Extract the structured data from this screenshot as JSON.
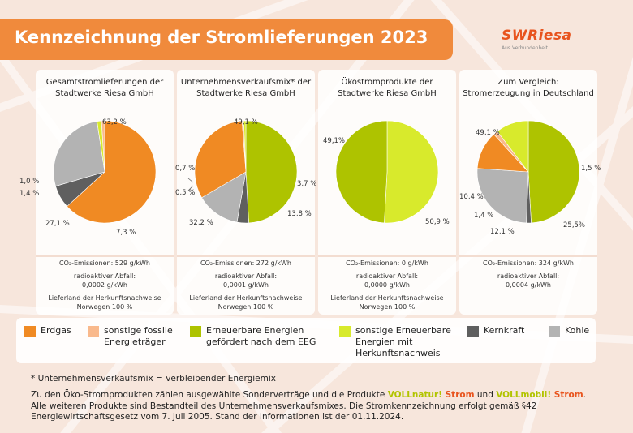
{
  "header": {
    "title": "Kennzeichnung der Stromlieferungen 2023"
  },
  "logo": {
    "wordmark": "SWRiesa",
    "tagline": "Aus Verbundenheit"
  },
  "colors": {
    "erdgas": "#f08a23",
    "sonstige_fossile": "#f9b98c",
    "erneuerbar_eeg": "#aec300",
    "sonstige_erneuerbar": "#d8ea2c",
    "kernkraft": "#5f5f5f",
    "kohle": "#b3b3b3"
  },
  "chart_data": [
    {
      "type": "pie",
      "title": "Gesamtstromlieferungen der Stadtwerke Riesa GmbH",
      "title_lines": [
        "Gesamtstromlieferungen der",
        "Stadtwerke Riesa GmbH"
      ],
      "slices": [
        {
          "category": "Erdgas",
          "value": 63.2,
          "label": "63,2 %",
          "color": "#f08a23"
        },
        {
          "category": "Kernkraft",
          "value": 7.3,
          "label": "7,3 %",
          "color": "#5f5f5f"
        },
        {
          "category": "Kohle",
          "value": 27.1,
          "label": "27,1 %",
          "color": "#b3b3b3"
        },
        {
          "category": "sonstige Erneuerbare Energien mit Herkunftsnachweis",
          "value": 1.4,
          "label": "1,4 %",
          "color": "#d8ea2c"
        },
        {
          "category": "sonstige fossile Energieträger",
          "value": 1.0,
          "label": "1,0 %",
          "color": "#f9b98c"
        }
      ],
      "info": {
        "co2": "CO₂-Emissionen: 529 g/kWh",
        "waste_label": "radioaktiver Abfall:",
        "waste_value": "0,0002 g/kWh",
        "origin_label": "Lieferland der Herkunftsnachweise",
        "origin_value": "Norwegen 100 %"
      }
    },
    {
      "type": "pie",
      "title": "Unternehmensverkaufsmix* der Stadtwerke Riesa GmbH",
      "title_lines": [
        "Unternehmensverkaufsmix* der",
        "Stadtwerke Riesa GmbH"
      ],
      "slices": [
        {
          "category": "Erneuerbare Energien gefördert nach dem EEG",
          "value": 49.1,
          "label": "49,1 %",
          "color": "#aec300"
        },
        {
          "category": "Kernkraft",
          "value": 3.7,
          "label": "3,7 %",
          "color": "#5f5f5f"
        },
        {
          "category": "Kohle",
          "value": 13.8,
          "label": "13,8 %",
          "color": "#b3b3b3"
        },
        {
          "category": "Erdgas",
          "value": 32.2,
          "label": "32,2 %",
          "color": "#f08a23"
        },
        {
          "category": "sonstige fossile Energieträger",
          "value": 0.5,
          "label": "0,5 %",
          "color": "#f9b98c"
        },
        {
          "category": "sonstige Erneuerbare Energien mit Herkunftsnachweis",
          "value": 0.7,
          "label": "0,7 %",
          "color": "#d8ea2c"
        }
      ],
      "info": {
        "co2": "CO₂-Emissionen: 272 g/kWh",
        "waste_label": "radioaktiver Abfall:",
        "waste_value": "0,0001 g/kWh",
        "origin_label": "Lieferland der Herkunftsnachweise",
        "origin_value": "Norwegen 100 %"
      }
    },
    {
      "type": "pie",
      "title": "Ökostromprodukte der Stadtwerke Riesa GmbH",
      "title_lines": [
        "Ökostromprodukte der",
        "Stadtwerke Riesa GmbH"
      ],
      "slices": [
        {
          "category": "sonstige Erneuerbare Energien mit Herkunftsnachweis",
          "value": 50.9,
          "label": "50,9 %",
          "color": "#d8ea2c"
        },
        {
          "category": "Erneuerbare Energien gefördert nach dem EEG",
          "value": 49.1,
          "label": "49,1%",
          "color": "#aec300"
        }
      ],
      "info": {
        "co2": "CO₂-Emissionen: 0 g/kWh",
        "waste_label": "radioaktiver Abfall:",
        "waste_value": "0,0000 g/kWh",
        "origin_label": "Lieferland der Herkunftsnachweise",
        "origin_value": "Norwegen 100 %"
      }
    },
    {
      "type": "pie",
      "title": "Zum Vergleich: Stromerzeugung in Deutschland",
      "title_lines": [
        "Zum Vergleich:",
        "Stromerzeugung in Deutschland"
      ],
      "slices": [
        {
          "category": "Erneuerbare Energien gefördert nach dem EEG",
          "value": 49.1,
          "label": "49,1 %",
          "color": "#aec300"
        },
        {
          "category": "Kernkraft",
          "value": 1.5,
          "label": "1,5 %",
          "color": "#5f5f5f"
        },
        {
          "category": "Kohle",
          "value": 25.5,
          "label": "25,5%",
          "color": "#b3b3b3"
        },
        {
          "category": "Erdgas",
          "value": 12.1,
          "label": "12,1 %",
          "color": "#f08a23"
        },
        {
          "category": "sonstige fossile Energieträger",
          "value": 1.4,
          "label": "1,4 %",
          "color": "#f9b98c"
        },
        {
          "category": "sonstige Erneuerbare Energien mit Herkunftsnachweis",
          "value": 10.4,
          "label": "10,4 %",
          "color": "#d8ea2c"
        }
      ],
      "info": {
        "co2": "CO₂-Emissionen: 324 g/kWh",
        "waste_label": "radioaktiver Abfall:",
        "waste_value": "0,0004 g/kWh",
        "origin_label": "",
        "origin_value": ""
      }
    }
  ],
  "legend": [
    {
      "label": "Erdgas",
      "color": "#f08a23"
    },
    {
      "label": "sonstige fossile Energieträger",
      "color": "#f9b98c"
    },
    {
      "label": "Erneuerbare Energien gefördert nach dem EEG",
      "color": "#aec300"
    },
    {
      "label": "sonstige Erneuerbare Energien mit Herkunftsnachweis",
      "color": "#d8ea2c"
    },
    {
      "label": "Kernkraft",
      "color": "#5f5f5f"
    },
    {
      "label": "Kohle",
      "color": "#b3b3b3"
    }
  ],
  "footer": {
    "footnote": "* Unternehmensverkaufsmix = verbleibender Energiemix",
    "para_1": "Zu den Öko-Stromprodukten zählen ausgewählte Sonderverträge und die Produkte ",
    "product_1a": "VOLLnatur!",
    "product_1b": " Strom",
    "para_2": " und ",
    "product_2a": "VOLLmobil!",
    "product_2b": " Strom",
    "para_3": ". Alle weiteren Produkte sind Bestandteil des Unternehmensverkaufsmixes. Die Stromkennzeichnung erfolgt gemäß §42 Energiewirtschaftsgesetz vom 7. Juli 2005. Stand der Informationen ist der 01.11.2024."
  }
}
